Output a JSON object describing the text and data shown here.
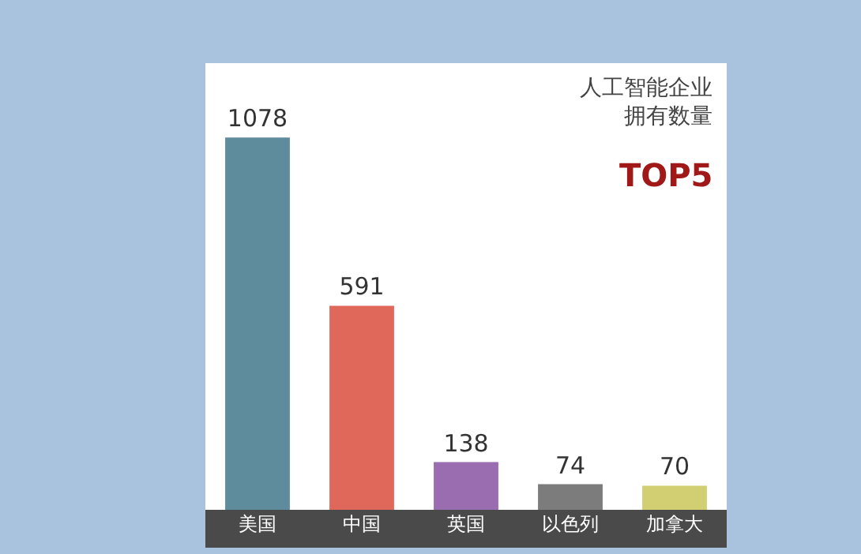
{
  "chart_data": {
    "type": "bar",
    "title": "人工智能企业拥有数量",
    "subtitle": "TOP5",
    "categories": [
      "美国",
      "中国",
      "英国",
      "以色列",
      "加拿大"
    ],
    "values": [
      1078,
      591,
      138,
      74,
      70
    ],
    "colors": [
      "#5f8c9c",
      "#e0685a",
      "#9a6cb0",
      "#7c7c7c",
      "#d2cf72"
    ],
    "data_labels": true
  }
}
